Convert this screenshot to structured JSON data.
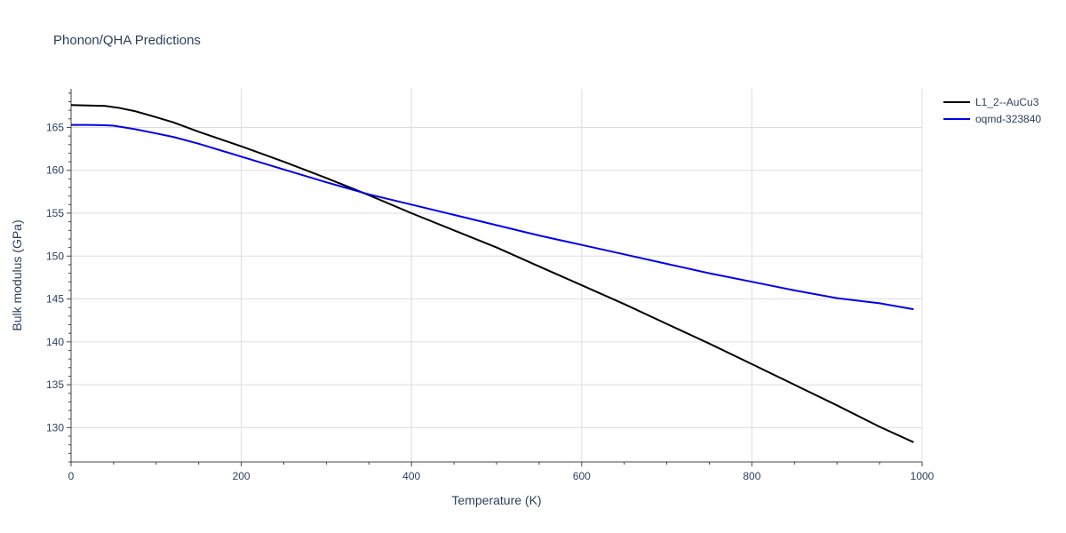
{
  "chart_data": {
    "type": "line",
    "title": "Phonon/QHA Predictions",
    "xlabel": "Temperature (K)",
    "ylabel": "Bulk modulus (GPa)",
    "xlim": [
      0,
      1000
    ],
    "ylim": [
      126,
      169.5
    ],
    "xticks": [
      0,
      200,
      400,
      600,
      800,
      1000
    ],
    "yticks": [
      130,
      135,
      140,
      145,
      150,
      155,
      160,
      165
    ],
    "grid": true,
    "legend": "top-right",
    "series": [
      {
        "name": "L1_2--AuCu3",
        "color": "#000000",
        "x": [
          0,
          20,
          40,
          55,
          75,
          100,
          120,
          150,
          200,
          250,
          300,
          350,
          400,
          450,
          500,
          550,
          600,
          650,
          700,
          750,
          800,
          850,
          900,
          950,
          990
        ],
        "y": [
          167.6,
          167.55,
          167.5,
          167.3,
          166.9,
          166.2,
          165.6,
          164.5,
          162.8,
          161.0,
          159.1,
          157.1,
          155.0,
          153.0,
          151.0,
          148.8,
          146.6,
          144.4,
          142.1,
          139.8,
          137.4,
          135.0,
          132.6,
          130.1,
          128.3
        ]
      },
      {
        "name": "oqmd-323840",
        "color": "#0000ee",
        "x": [
          0,
          20,
          40,
          50,
          75,
          100,
          120,
          150,
          200,
          250,
          300,
          350,
          400,
          450,
          500,
          550,
          600,
          650,
          700,
          750,
          800,
          850,
          900,
          950,
          990
        ],
        "y": [
          165.3,
          165.3,
          165.25,
          165.2,
          164.8,
          164.3,
          163.9,
          163.1,
          161.6,
          160.1,
          158.6,
          157.2,
          156.0,
          154.8,
          153.6,
          152.4,
          151.3,
          150.2,
          149.1,
          148.0,
          147.0,
          146.0,
          145.1,
          144.5,
          143.8
        ]
      }
    ]
  }
}
